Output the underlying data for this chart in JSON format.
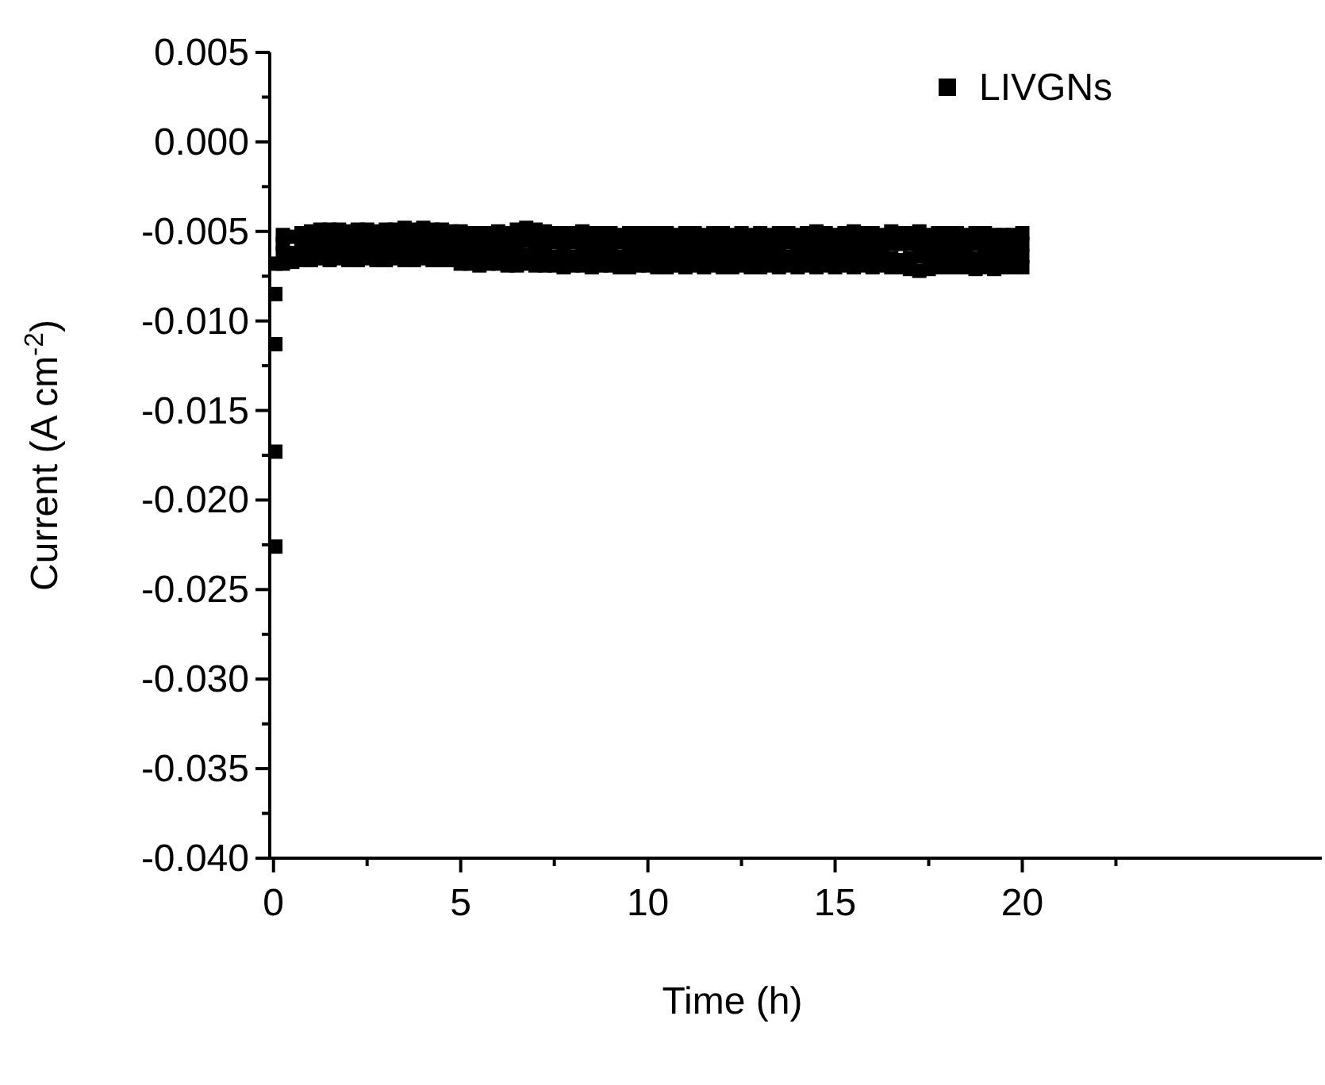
{
  "chart_data": {
    "type": "scatter",
    "xlabel": "Time (h)",
    "ylabel": "Current (A cm$^{-2}$)",
    "xlim": [
      -0.1,
      28
    ],
    "ylim": [
      -0.04,
      0.005
    ],
    "xticks": [
      0,
      {
        "value": 2.5,
        "label": null
      },
      5,
      {
        "value": 7.5,
        "label": null
      },
      10,
      {
        "value": 12.5,
        "label": null
      },
      15,
      {
        "value": 17.5,
        "label": null
      },
      20,
      {
        "value": 22.5,
        "label": null
      }
    ],
    "yticks": [
      {
        "value": 0.005,
        "label": "0.005"
      },
      {
        "value": 0.0025,
        "label": null
      },
      {
        "value": 0,
        "label": "0.000"
      },
      {
        "value": -0.0025,
        "label": null
      },
      {
        "value": -0.005,
        "label": "-0.005"
      },
      {
        "value": -0.0075,
        "label": null
      },
      {
        "value": -0.01,
        "label": "-0.010"
      },
      {
        "value": -0.0125,
        "label": null
      },
      {
        "value": -0.015,
        "label": "-0.015"
      },
      {
        "value": -0.0175,
        "label": null
      },
      {
        "value": -0.02,
        "label": "-0.020"
      },
      {
        "value": -0.0225,
        "label": null
      },
      {
        "value": -0.025,
        "label": "-0.025"
      },
      {
        "value": -0.0275,
        "label": null
      },
      {
        "value": -0.03,
        "label": "-0.030"
      },
      {
        "value": -0.0325,
        "label": null
      },
      {
        "value": -0.035,
        "label": "-0.035"
      },
      {
        "value": -0.0375,
        "label": null
      },
      {
        "value": -0.04,
        "label": "-0.040"
      }
    ],
    "marker": "square",
    "legend": "top right",
    "grid": false,
    "series": [
      {
        "name": "LIVGNs",
        "color": "#000000",
        "x": [
          0.05,
          0.05,
          0.05,
          0.05,
          0.05,
          0.25,
          0.25,
          0.5,
          0.5,
          0.75,
          0.75,
          1,
          1,
          1.25,
          1.25,
          1.5,
          1.5,
          1.75,
          1.75,
          2,
          2,
          2.25,
          2.25,
          2.5,
          2.5,
          2.75,
          2.75,
          3,
          3,
          3.25,
          3.25,
          3.5,
          3.5,
          3.75,
          3.75,
          4,
          4,
          4.25,
          4.25,
          4.5,
          4.5,
          4.75,
          4.75,
          5,
          5,
          5.25,
          5.25,
          5.5,
          5.5,
          5.75,
          5.75,
          6,
          6,
          6.25,
          6.25,
          6.5,
          6.5,
          6.75,
          6.75,
          7,
          7,
          7.25,
          7.25,
          7.5,
          7.5,
          7.75,
          7.75,
          8,
          8,
          8.25,
          8.25,
          8.5,
          8.5,
          8.75,
          8.75,
          9,
          9,
          9.25,
          9.25,
          9.5,
          9.5,
          9.75,
          9.75,
          10,
          10,
          10.25,
          10.25,
          10.5,
          10.5,
          10.75,
          10.75,
          11,
          11,
          11.25,
          11.25,
          11.5,
          11.5,
          11.75,
          11.75,
          12,
          12,
          12.25,
          12.25,
          12.5,
          12.5,
          12.75,
          12.75,
          13,
          13,
          13.25,
          13.25,
          13.5,
          13.5,
          13.75,
          13.75,
          14,
          14,
          14.25,
          14.25,
          14.5,
          14.5,
          14.75,
          14.75,
          15,
          15,
          15.25,
          15.25,
          15.5,
          15.5,
          15.75,
          15.75,
          16,
          16,
          16.25,
          16.25,
          16.5,
          16.5,
          16.75,
          16.75,
          17,
          17,
          17.25,
          17.25,
          17.5,
          17.5,
          17.75,
          17.75,
          18,
          18,
          18.25,
          18.25,
          18.5,
          18.5,
          18.75,
          18.75,
          19,
          19,
          19.25,
          19.25,
          19.5,
          19.5,
          19.75,
          19.75,
          20,
          20,
          0.25,
          0.25,
          0.5,
          0.75,
          0.75,
          1,
          1,
          1.25,
          1.25,
          1.5,
          1.5,
          1.75,
          1.75,
          2,
          2,
          2.25,
          2.25,
          2.5,
          2.5,
          2.75,
          2.75,
          3,
          3,
          3.25,
          3.25,
          3.5,
          3.5,
          3.75,
          3.75,
          4,
          4,
          4.25,
          4.25,
          4.5,
          4.5,
          4.75,
          4.75,
          5,
          5,
          5.25,
          5.25,
          5.5,
          5.5,
          5.75,
          5.75,
          6,
          6,
          6.25,
          6.25,
          6.5,
          6.5,
          6.75,
          6.75,
          7,
          7,
          7.25,
          7.25,
          7.5,
          7.5,
          7.75,
          7.75,
          8,
          8,
          8.25,
          8.25,
          8.5,
          8.5,
          8.75,
          8.75,
          9,
          9,
          9.25,
          9.25,
          9.5,
          9.5,
          9.75,
          9.75,
          10,
          10,
          10.25,
          10.25,
          10.5,
          10.5,
          10.75,
          10.75,
          11,
          11,
          11.25,
          11.25,
          11.5,
          11.5,
          11.75,
          11.75,
          12,
          12,
          12.25,
          12.25,
          12.5,
          12.5,
          12.75,
          12.75,
          13,
          13,
          13.25,
          13.25,
          13.5,
          13.5,
          13.75,
          13.75,
          14,
          14,
          14.25,
          14.25,
          14.5,
          14.5,
          14.75,
          14.75,
          15,
          15,
          15.25,
          15.25,
          15.5,
          15.5,
          15.75,
          15.75,
          16,
          16,
          16.25,
          16.25,
          16.5,
          16.5,
          16.75,
          16.75,
          17,
          17,
          17.25,
          17.25,
          17.5,
          17.5,
          17.75,
          17.75,
          18,
          18,
          18.25,
          18.25,
          18.5,
          18.5,
          18.75,
          18.75,
          19,
          19,
          19.25,
          19.25,
          19.5,
          19.5,
          19.75,
          19.75,
          20,
          20
        ],
        "values": [
          -0.0226,
          -0.0173,
          -0.0113,
          -0.0085,
          -0.0068,
          -0.0052,
          -0.0068,
          -0.0053,
          -0.0067,
          -0.0051,
          -0.0066,
          -0.005,
          -0.0066,
          -0.0049,
          -0.0065,
          -0.0049,
          -0.0066,
          -0.0049,
          -0.0065,
          -0.005,
          -0.0066,
          -0.0049,
          -0.0066,
          -0.0049,
          -0.0065,
          -0.005,
          -0.0066,
          -0.0049,
          -0.0066,
          -0.0049,
          -0.0065,
          -0.0048,
          -0.0066,
          -0.0049,
          -0.0066,
          -0.0048,
          -0.0065,
          -0.0049,
          -0.0066,
          -0.0049,
          -0.0066,
          -0.005,
          -0.0066,
          -0.005,
          -0.0068,
          -0.0051,
          -0.0068,
          -0.0051,
          -0.0069,
          -0.0051,
          -0.0068,
          -0.005,
          -0.0068,
          -0.0051,
          -0.0069,
          -0.0049,
          -0.0069,
          -0.0048,
          -0.0068,
          -0.0049,
          -0.0069,
          -0.005,
          -0.0069,
          -0.0051,
          -0.0069,
          -0.0051,
          -0.007,
          -0.0051,
          -0.0069,
          -0.005,
          -0.0069,
          -0.0051,
          -0.007,
          -0.0051,
          -0.0069,
          -0.0051,
          -0.0069,
          -0.0052,
          -0.007,
          -0.0051,
          -0.007,
          -0.0051,
          -0.0069,
          -0.0051,
          -0.0069,
          -0.0051,
          -0.007,
          -0.0051,
          -0.007,
          -0.0052,
          -0.0069,
          -0.0051,
          -0.007,
          -0.0051,
          -0.0069,
          -0.0052,
          -0.007,
          -0.0051,
          -0.0069,
          -0.0051,
          -0.007,
          -0.0052,
          -0.007,
          -0.0051,
          -0.0069,
          -0.0052,
          -0.007,
          -0.0051,
          -0.007,
          -0.0052,
          -0.0069,
          -0.0051,
          -0.007,
          -0.0051,
          -0.0069,
          -0.0052,
          -0.007,
          -0.0051,
          -0.0069,
          -0.005,
          -0.007,
          -0.0051,
          -0.0069,
          -0.0052,
          -0.007,
          -0.0051,
          -0.0069,
          -0.005,
          -0.007,
          -0.0051,
          -0.0069,
          -0.0051,
          -0.007,
          -0.0052,
          -0.0069,
          -0.005,
          -0.007,
          -0.0051,
          -0.007,
          -0.0051,
          -0.0071,
          -0.005,
          -0.0072,
          -0.0052,
          -0.0071,
          -0.0051,
          -0.007,
          -0.0051,
          -0.007,
          -0.0051,
          -0.007,
          -0.0052,
          -0.007,
          -0.0051,
          -0.0071,
          -0.0051,
          -0.007,
          -0.0052,
          -0.0071,
          -0.0052,
          -0.007,
          -0.0052,
          -0.007,
          -0.0051,
          -0.007,
          -0.0057,
          -0.0062,
          -0.0062,
          -0.0056,
          -0.0061,
          -0.0056,
          -0.0061,
          -0.0055,
          -0.0061,
          -0.0055,
          -0.006,
          -0.0055,
          -0.0061,
          -0.0055,
          -0.006,
          -0.0055,
          -0.0061,
          -0.0055,
          -0.006,
          -0.0055,
          -0.0061,
          -0.0055,
          -0.006,
          -0.0055,
          -0.0061,
          -0.0055,
          -0.006,
          -0.0055,
          -0.0061,
          -0.0055,
          -0.006,
          -0.0055,
          -0.0061,
          -0.0055,
          -0.006,
          -0.0056,
          -0.0062,
          -0.0056,
          -0.0062,
          -0.0056,
          -0.0063,
          -0.0056,
          -0.0062,
          -0.0056,
          -0.0063,
          -0.0056,
          -0.0062,
          -0.0056,
          -0.0063,
          -0.0055,
          -0.0062,
          -0.0055,
          -0.0063,
          -0.0056,
          -0.0063,
          -0.0056,
          -0.0063,
          -0.0056,
          -0.0064,
          -0.0056,
          -0.0063,
          -0.0056,
          -0.0064,
          -0.0056,
          -0.0063,
          -0.0057,
          -0.0064,
          -0.0056,
          -0.0063,
          -0.0057,
          -0.0064,
          -0.0056,
          -0.0064,
          -0.0057,
          -0.0063,
          -0.0057,
          -0.0064,
          -0.0056,
          -0.0063,
          -0.0057,
          -0.0064,
          -0.0057,
          -0.0063,
          -0.0057,
          -0.0064,
          -0.0056,
          -0.0063,
          -0.0057,
          -0.0064,
          -0.0057,
          -0.0063,
          -0.0057,
          -0.0064,
          -0.0056,
          -0.0063,
          -0.0057,
          -0.0064,
          -0.0057,
          -0.0063,
          -0.0057,
          -0.0064,
          -0.0056,
          -0.0063,
          -0.0057,
          -0.0064,
          -0.0057,
          -0.0063,
          -0.0056,
          -0.0064,
          -0.0057,
          -0.0063,
          -0.0057,
          -0.0064,
          -0.0056,
          -0.0063,
          -0.0057,
          -0.0064,
          -0.0057,
          -0.0063,
          -0.0057,
          -0.0064,
          -0.0056,
          -0.0063,
          -0.0057,
          -0.0064,
          -0.0057,
          -0.0063,
          -0.0057,
          -0.0064,
          -0.0057,
          -0.0065,
          -0.0057,
          -0.0066,
          -0.0057,
          -0.0065,
          -0.0057,
          -0.0064,
          -0.0057,
          -0.0064,
          -0.0057,
          -0.0064,
          -0.0057,
          -0.0064,
          -0.0057,
          -0.0064,
          -0.0057,
          -0.0064,
          -0.0057,
          -0.0065,
          -0.0057,
          -0.0064,
          -0.0057,
          -0.0064,
          -0.0057,
          -0.0064,
          -0.0057,
          -0.0064,
          -0.0057,
          -0.0064
        ]
      }
    ]
  }
}
